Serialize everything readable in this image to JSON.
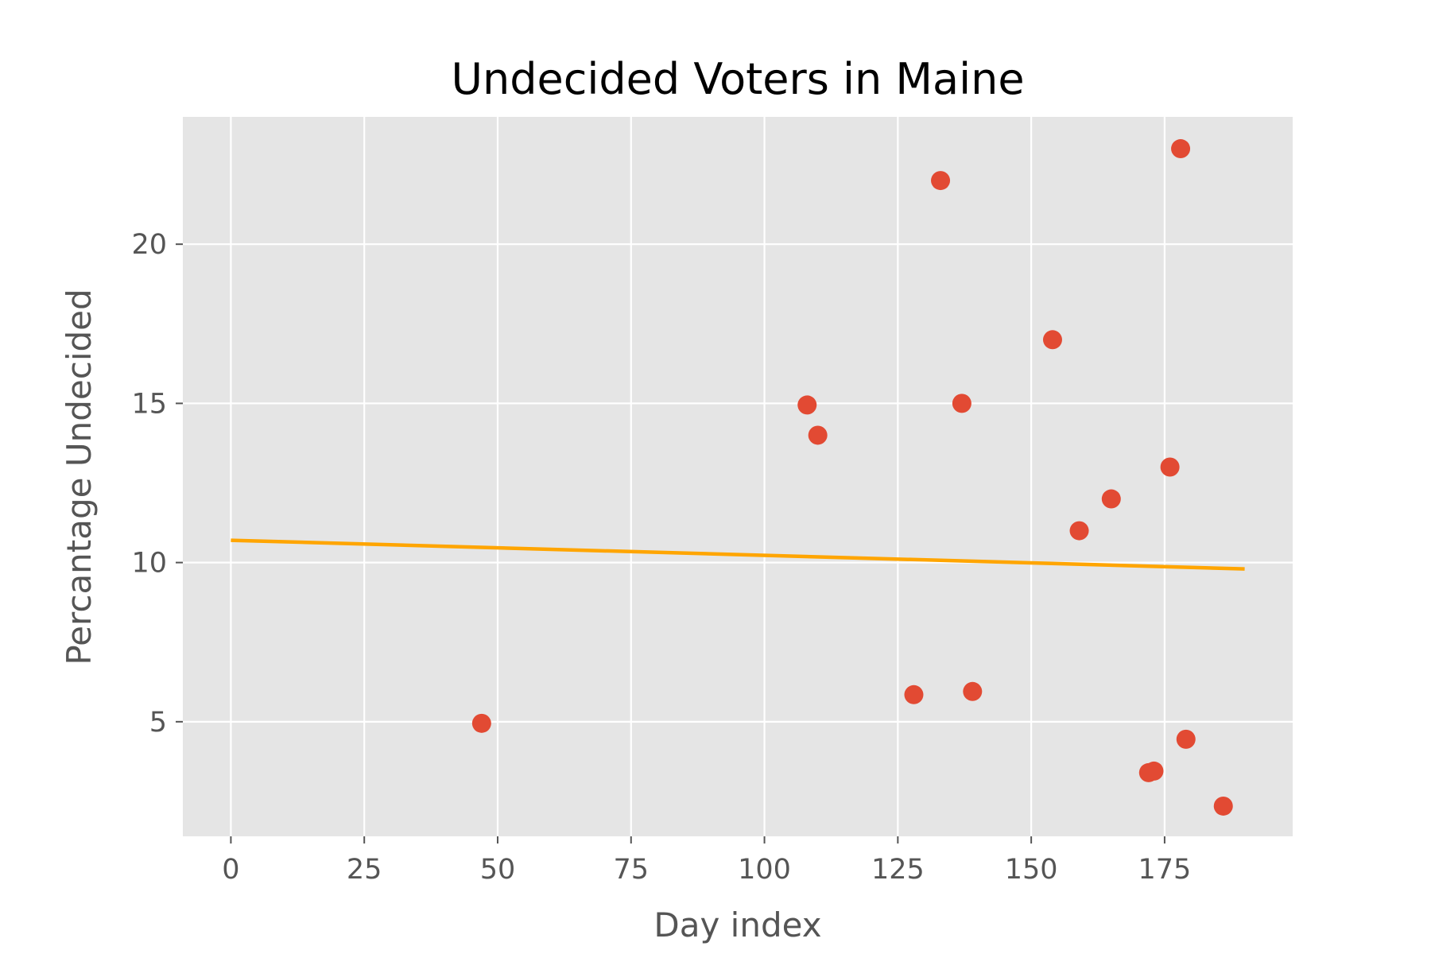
{
  "chart_data": {
    "type": "scatter",
    "title": "Undecided Voters in Maine",
    "xlabel": "Day index",
    "ylabel": "Percantage Undecided",
    "xlim": [
      -9,
      199
    ],
    "ylim": [
      1.4,
      24.0
    ],
    "x_ticks": [
      0,
      25,
      50,
      75,
      100,
      125,
      150,
      175
    ],
    "y_ticks": [
      5,
      10,
      15,
      20
    ],
    "grid": true,
    "legend": "none",
    "colors": {
      "background": "#e5e5e5",
      "grid": "#ffffff",
      "points": "#e24a33",
      "trend_line": "#ffa500"
    },
    "series": [
      {
        "type": "scatter",
        "points": [
          {
            "x": 47,
            "y": 4.95
          },
          {
            "x": 108,
            "y": 14.95
          },
          {
            "x": 110,
            "y": 14.0
          },
          {
            "x": 128,
            "y": 5.85
          },
          {
            "x": 133,
            "y": 22.0
          },
          {
            "x": 137,
            "y": 15.0
          },
          {
            "x": 139,
            "y": 5.95
          },
          {
            "x": 154,
            "y": 17.0
          },
          {
            "x": 159,
            "y": 11.0
          },
          {
            "x": 165,
            "y": 12.0
          },
          {
            "x": 172,
            "y": 3.4
          },
          {
            "x": 173,
            "y": 3.45
          },
          {
            "x": 176,
            "y": 13.0
          },
          {
            "x": 178,
            "y": 23.0
          },
          {
            "x": 179,
            "y": 4.45
          },
          {
            "x": 186,
            "y": 2.35
          }
        ]
      },
      {
        "type": "line",
        "points": [
          {
            "x": 0,
            "y": 10.7
          },
          {
            "x": 190,
            "y": 9.8
          }
        ]
      }
    ]
  }
}
